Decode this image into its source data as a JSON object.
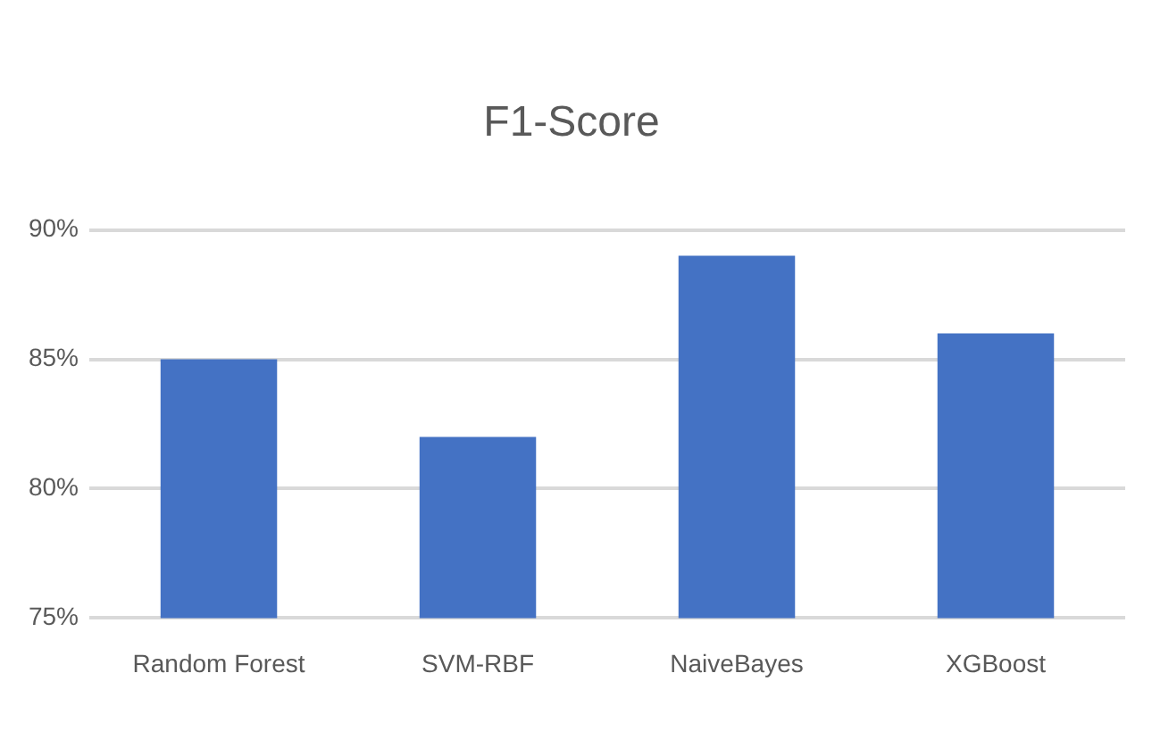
{
  "chart_data": {
    "type": "bar",
    "title": "F1-Score",
    "categories": [
      "Random Forest",
      "SVM-RBF",
      "NaiveBayes",
      "XGBoost"
    ],
    "values": [
      85,
      82,
      89,
      86
    ],
    "color": "#4472c4",
    "ylim": [
      75,
      90
    ],
    "yticks": [
      {
        "value": 75,
        "label": "75%"
      },
      {
        "value": 80,
        "label": "80%"
      },
      {
        "value": 85,
        "label": "85%"
      },
      {
        "value": 90,
        "label": "90%"
      }
    ],
    "grid": "y",
    "legend": false
  }
}
